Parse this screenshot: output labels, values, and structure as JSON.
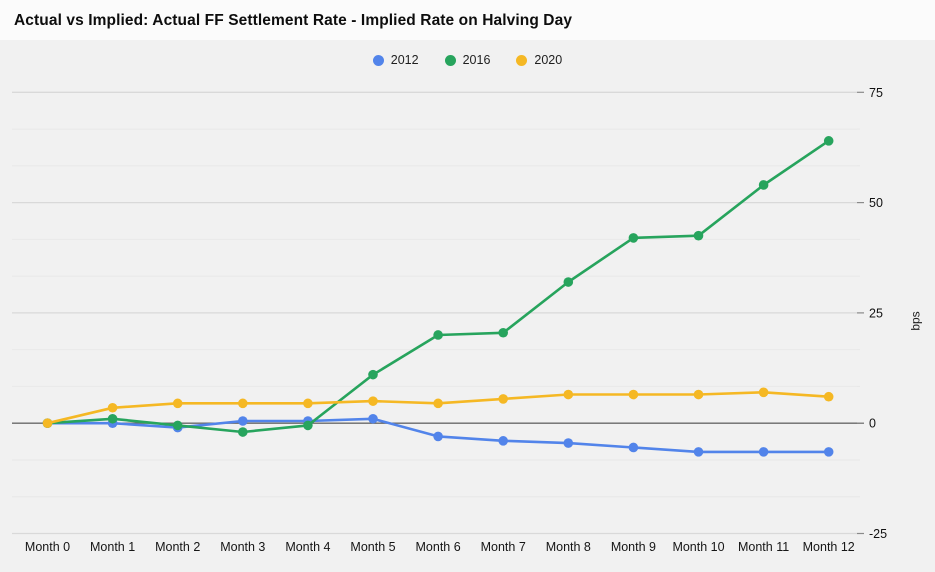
{
  "header": {
    "title": "Actual vs Implied: Actual FF Settlement Rate - Implied Rate on Halving Day"
  },
  "chart_data": {
    "type": "line",
    "title": "Actual vs Implied: Actual FF Settlement Rate - Implied Rate on Halving Day",
    "categories": [
      "Month 0",
      "Month 1",
      "Month 2",
      "Month 3",
      "Month 4",
      "Month 5",
      "Month 6",
      "Month 7",
      "Month 8",
      "Month 9",
      "Month 10",
      "Month 11",
      "Month 12"
    ],
    "series": [
      {
        "name": "2012",
        "color": "#5284ea",
        "values": [
          0,
          0,
          -1,
          0.5,
          0.5,
          1,
          -3,
          -4,
          -4.5,
          -5.5,
          -6.5,
          -6.5,
          -6.5
        ]
      },
      {
        "name": "2016",
        "color": "#27a45d",
        "values": [
          0,
          1,
          -0.5,
          -2,
          -0.5,
          11,
          20,
          20.5,
          32,
          42,
          42.5,
          54,
          64
        ]
      },
      {
        "name": "2020",
        "color": "#f5b824",
        "values": [
          0,
          3.5,
          4.5,
          4.5,
          4.5,
          5,
          4.5,
          5.5,
          6.5,
          6.5,
          6.5,
          7,
          6
        ]
      }
    ],
    "xlabel": "",
    "ylabel": "bps",
    "ylim": [
      -25,
      75
    ],
    "y_major_step": 25,
    "y_minor_divisions_per_major": 3,
    "y_tick_labels": [
      "75",
      "50",
      "25",
      "0",
      "-25"
    ],
    "legend_position": "top-center",
    "grid": true
  },
  "colors": {
    "page_background": "#f1f1f1",
    "title_band_background": "#fbfbfb",
    "major_gridline": "#d9d9d9",
    "minor_gridline": "#e8e8e8",
    "zero_axis": "#696969",
    "tick": "#8a8a8a",
    "axis_text": "#111111"
  }
}
